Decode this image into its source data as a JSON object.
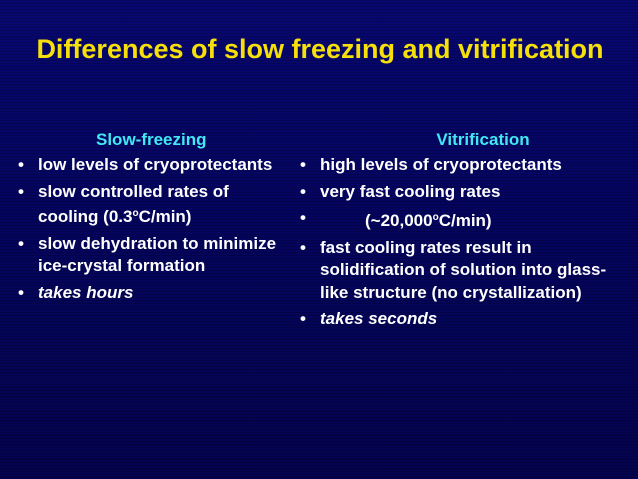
{
  "title": "Differences of slow freezing and vitrification",
  "left_column": {
    "heading": "Slow-freezing",
    "bullets": [
      {
        "text": "low levels of cryoprotectants"
      },
      {
        "pre": "slow controlled rates of cooling (0.3",
        "deg": "o",
        "post": "C/min)"
      },
      {
        "text": "slow dehydration to minimize ice-crystal formation"
      },
      {
        "text": "takes hours"
      }
    ]
  },
  "right_column": {
    "heading": "Vitrification",
    "bullets": [
      {
        "text": "high levels of cryoprotectants"
      },
      {
        "text": "very fast cooling rates"
      },
      {
        "pre": "(~20,000",
        "deg": "o",
        "post": "C/min)"
      },
      {
        "text": "fast cooling rates result in solidification of solution into glass-like structure (no crystallization)"
      },
      {
        "text": "takes seconds"
      }
    ]
  },
  "bullet_symbol": "•",
  "colors": {
    "background": "#04045a",
    "title": "#f6e00a",
    "heading": "#42e8f2",
    "body_text": "#ffffff"
  }
}
